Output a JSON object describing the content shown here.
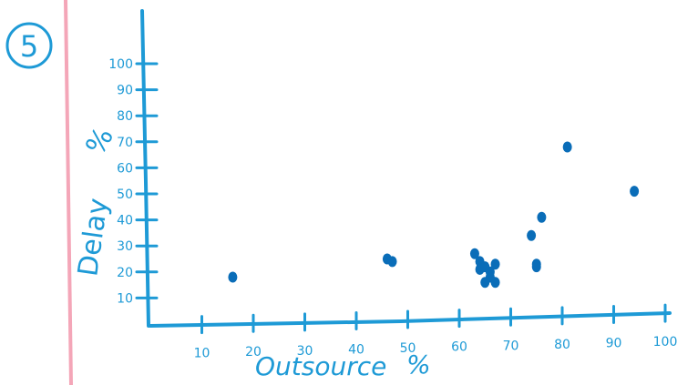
{
  "colors": {
    "ink": "#1e9ad6",
    "points": "#0a6db8",
    "margin_line": "#f4a6b8"
  },
  "annotation": {
    "circled_number": "5"
  },
  "chart_data": {
    "type": "scatter",
    "title": "",
    "xlabel": "Outsource",
    "xlabel_unit": "%",
    "ylabel": "Delay",
    "ylabel_unit": "%",
    "xlim": [
      0,
      100
    ],
    "ylim": [
      0,
      100
    ],
    "x_ticks": [
      10,
      20,
      30,
      40,
      50,
      60,
      70,
      80,
      90,
      100
    ],
    "y_ticks": [
      10,
      20,
      30,
      40,
      50,
      60,
      70,
      80,
      90,
      100
    ],
    "grid": false,
    "legend": "none",
    "x": [
      16,
      46,
      47,
      63,
      64,
      64,
      65,
      65,
      66,
      66,
      67,
      67,
      74,
      75,
      75,
      76,
      81,
      94
    ],
    "y": [
      18,
      25,
      24,
      27,
      24,
      21,
      16,
      22,
      18,
      20,
      16,
      23,
      34,
      22,
      23,
      41,
      68,
      51
    ]
  }
}
